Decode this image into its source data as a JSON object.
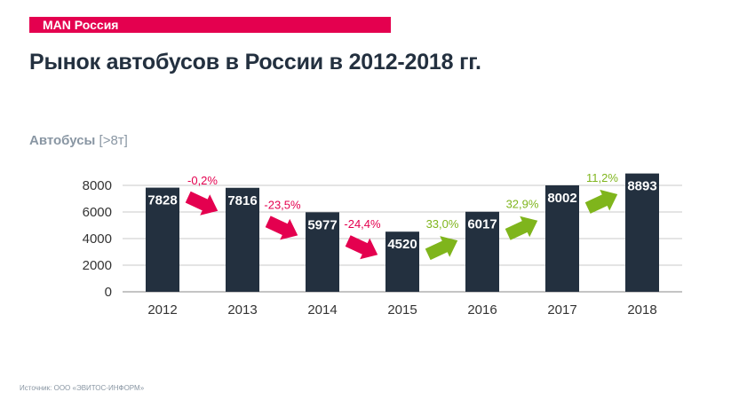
{
  "header": {
    "brand_label": "MAN Россия",
    "title": "Рынок автобусов в России в 2012-2018 гг.",
    "subtitle_main": "Автобусы",
    "subtitle_unit": "[>8т]"
  },
  "footer": {
    "source": "Источник: ООО «ЭВИТОС-ИНФОРМ»"
  },
  "colors": {
    "accent": "#e4004f",
    "bar": "#23303f",
    "decline": "#e4004f",
    "growth": "#7fb51c",
    "subtitle": "#8996a3"
  },
  "chart_data": {
    "type": "bar",
    "categories": [
      "2012",
      "2013",
      "2014",
      "2015",
      "2016",
      "2017",
      "2018"
    ],
    "values": [
      7828,
      7816,
      5977,
      4520,
      6017,
      8002,
      8893
    ],
    "data_labels": [
      "7828",
      "7816",
      "5977",
      "4520",
      "6017",
      "8002",
      "8893"
    ],
    "ylim": [
      0,
      8000
    ],
    "yticks": [
      "0",
      "2000",
      "4000",
      "6000",
      "8000"
    ],
    "grid": true,
    "changes": [
      {
        "label": "-0,2%",
        "direction": "down"
      },
      {
        "label": "-23,5%",
        "direction": "down"
      },
      {
        "label": "-24,4%",
        "direction": "down"
      },
      {
        "label": "33,0%",
        "direction": "up"
      },
      {
        "label": "32,9%",
        "direction": "up"
      },
      {
        "label": "11,2%",
        "direction": "up"
      }
    ]
  }
}
